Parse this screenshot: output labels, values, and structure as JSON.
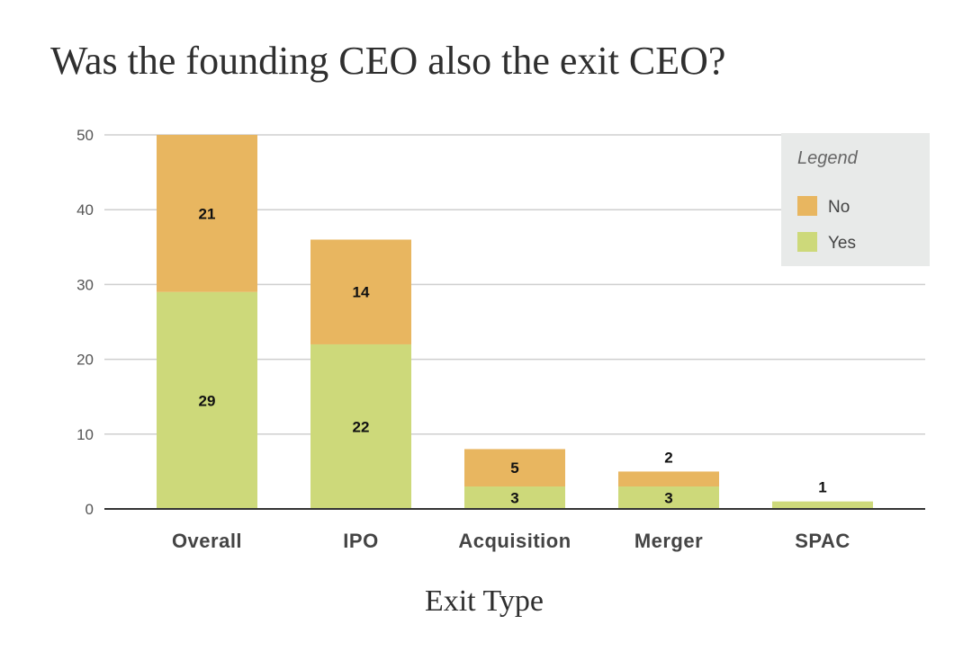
{
  "chart_data": {
    "type": "bar",
    "stacked": true,
    "title": "Was the founding CEO also the exit CEO?",
    "xlabel": "Exit Type",
    "ylabel": "",
    "categories": [
      "Overall",
      "IPO",
      "Acquisition",
      "Merger",
      "SPAC"
    ],
    "series": [
      {
        "name": "Yes",
        "values": [
          29,
          22,
          3,
          3,
          1
        ],
        "color": "#cdd97a",
        "labels": [
          "29",
          "22",
          "3",
          "3",
          "1"
        ]
      },
      {
        "name": "No",
        "values": [
          21,
          14,
          5,
          2,
          0
        ],
        "color": "#e8b660",
        "labels": [
          "21",
          "14",
          "5",
          "2",
          ""
        ]
      }
    ],
    "ylim": [
      0,
      50
    ],
    "yticks": [
      0,
      10,
      20,
      30,
      40,
      50
    ],
    "grid": true,
    "legend": {
      "title": "Legend",
      "position": "top-right",
      "entries": [
        "No",
        "Yes"
      ]
    }
  }
}
